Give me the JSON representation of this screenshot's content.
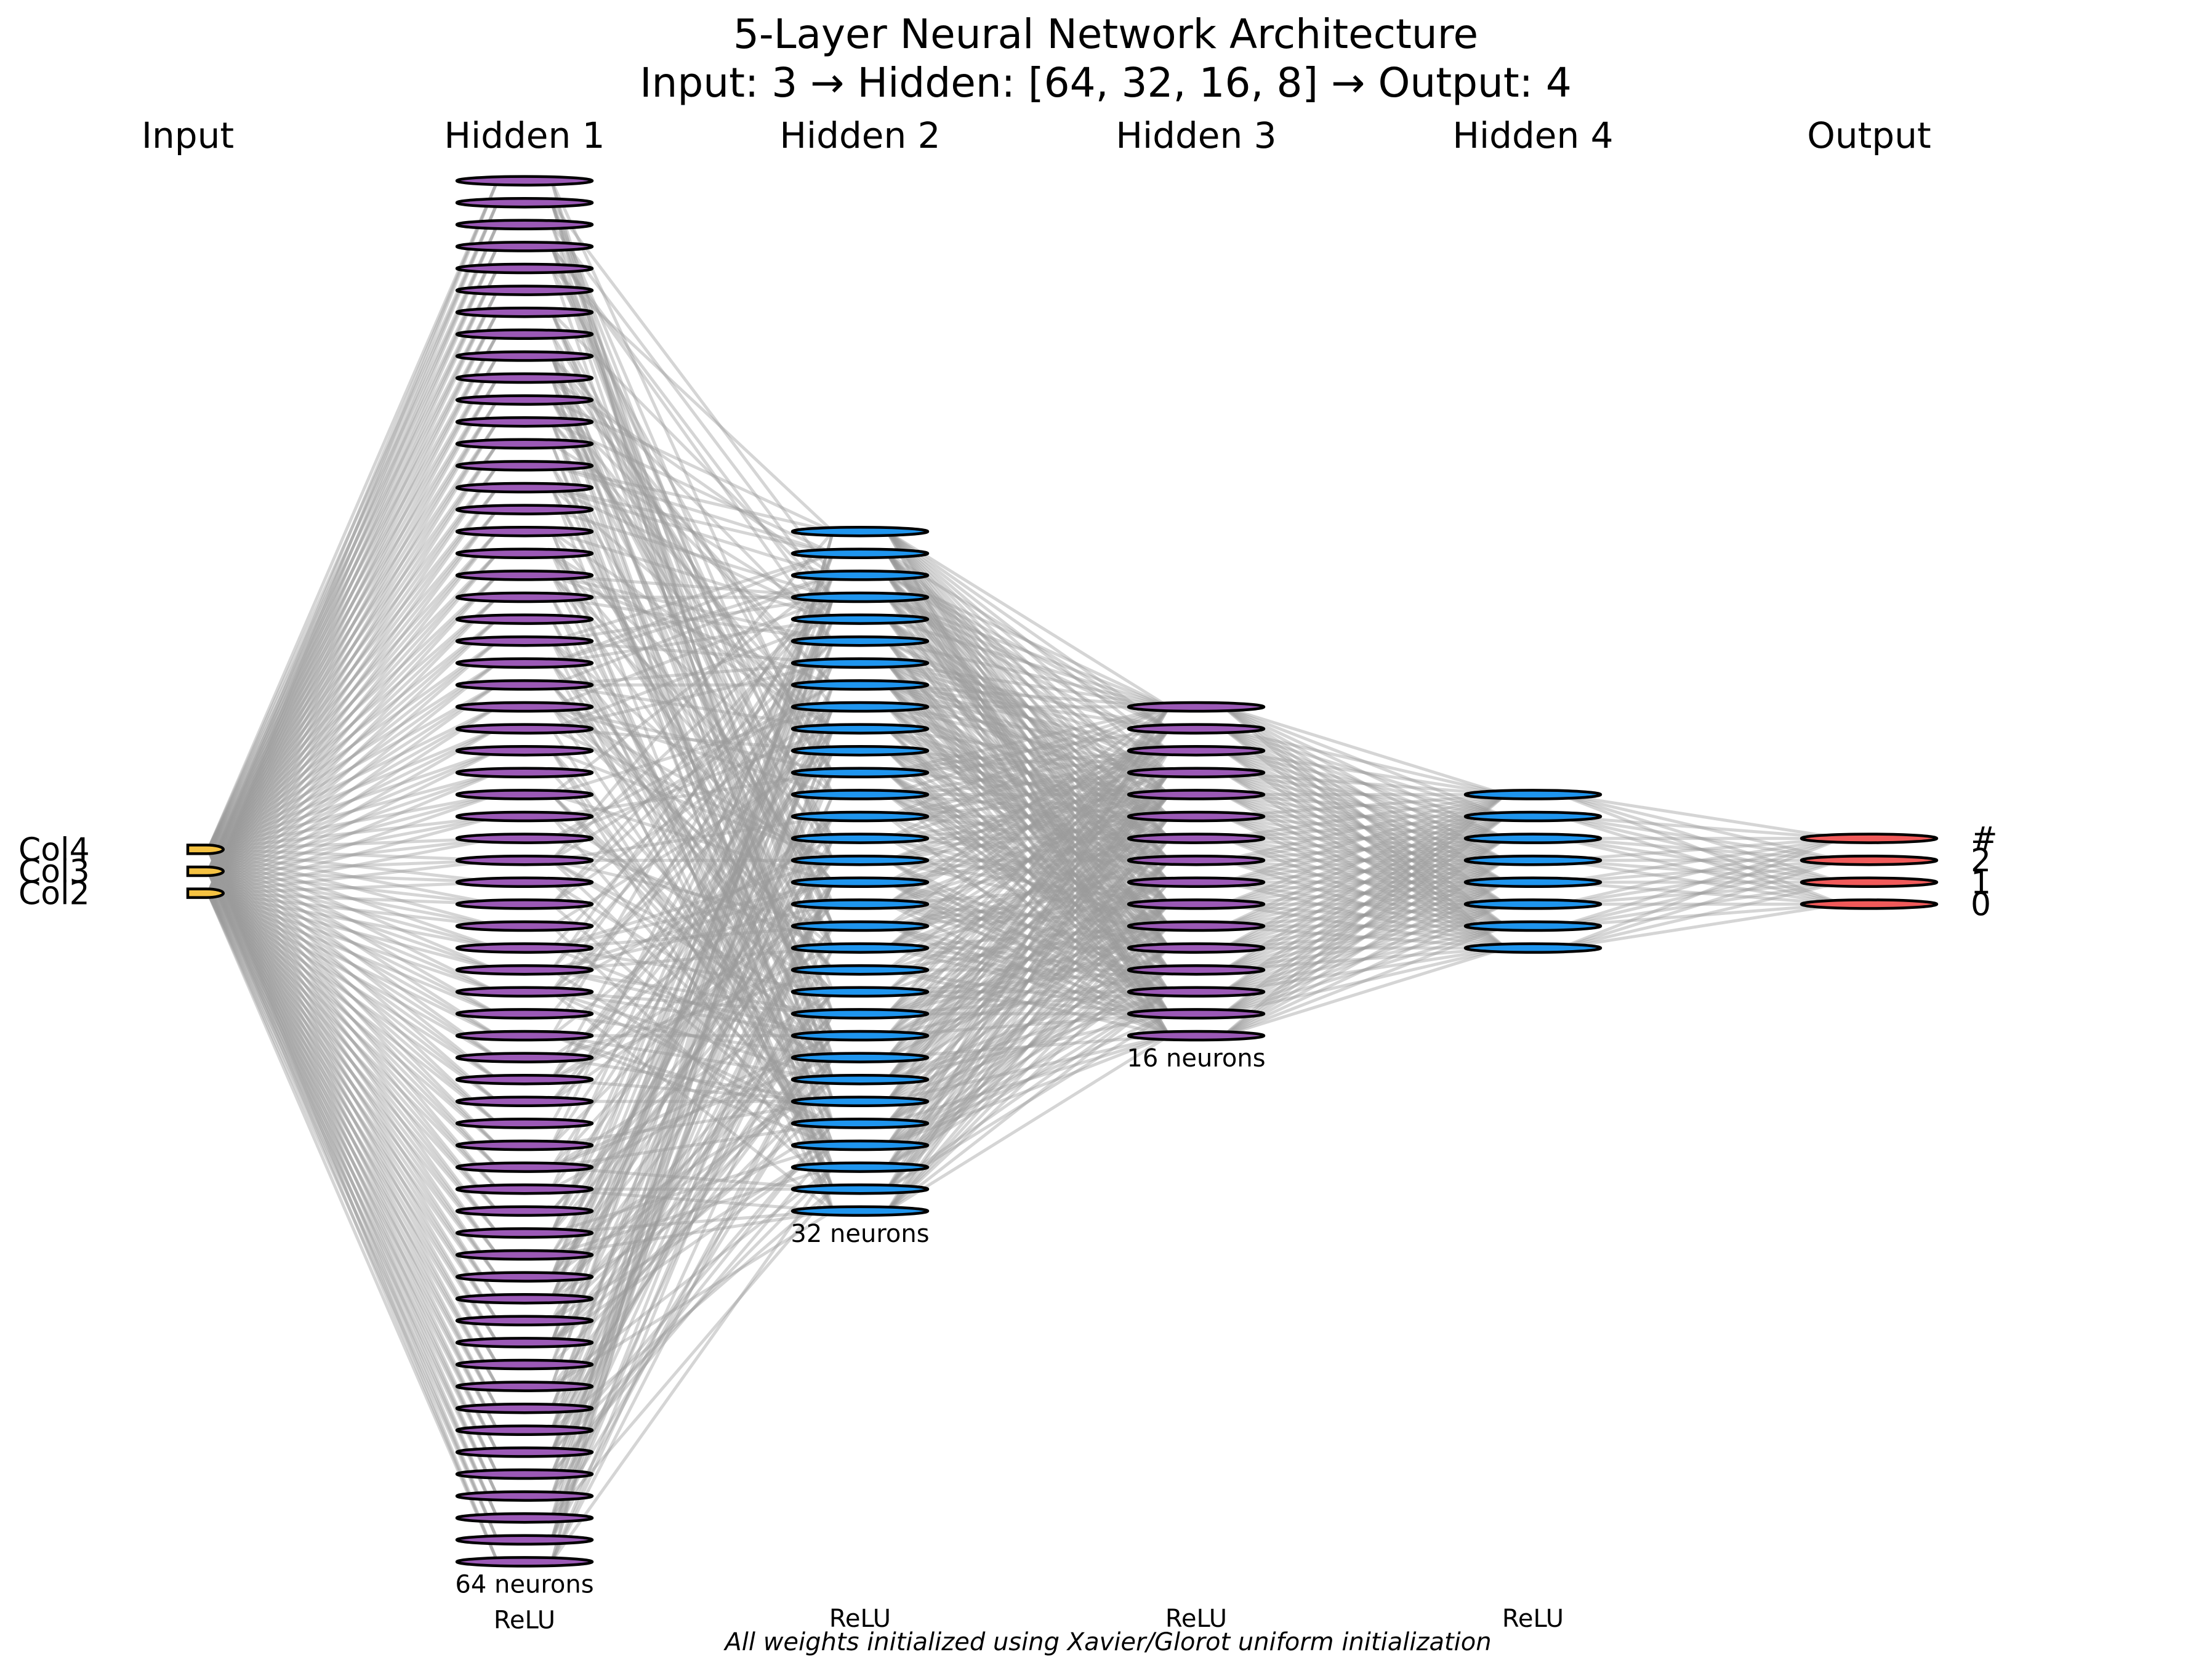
{
  "title": {
    "line1": "5-Layer Neural Network Architecture",
    "line2": "Input: 3 → Hidden: [64, 32, 16, 8] → Output: 4"
  },
  "layers": [
    {
      "name": "Input",
      "neurons": 3,
      "color": "#f5c242",
      "count_label": "",
      "activation": "",
      "node_labels": [
        "Col4",
        "Col3",
        "Col2"
      ]
    },
    {
      "name": "Hidden 1",
      "neurons": 64,
      "color": "#9b59b6",
      "count_label": "64 neurons",
      "activation": "ReLU",
      "node_labels": []
    },
    {
      "name": "Hidden 2",
      "neurons": 32,
      "color": "#1f95ee",
      "count_label": "32 neurons",
      "activation": "ReLU",
      "node_labels": []
    },
    {
      "name": "Hidden 3",
      "neurons": 16,
      "color": "#9b59b6",
      "count_label": "16 neurons",
      "activation": "ReLU",
      "node_labels": []
    },
    {
      "name": "Hidden 4",
      "neurons": 8,
      "color": "#1f95ee",
      "count_label": "",
      "activation": "ReLU",
      "node_labels": []
    },
    {
      "name": "Output",
      "neurons": 4,
      "color": "#f05a5a",
      "count_label": "",
      "activation": "",
      "node_labels": [
        "#",
        "2",
        "1",
        "0"
      ]
    }
  ],
  "edge_color": "#9a9a9a",
  "footnote": "All weights initialized using Xavier/Glorot uniform initialization"
}
